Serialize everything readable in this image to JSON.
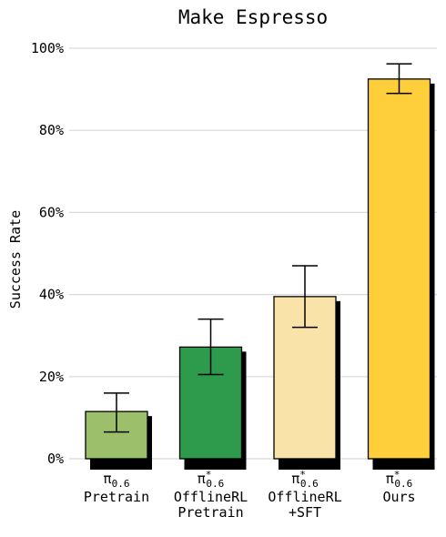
{
  "chart_data": {
    "type": "bar",
    "title": "Make Espresso",
    "ylabel": "Success Rate",
    "xlabel": "",
    "ylim": [
      0,
      100
    ],
    "yticks": [
      "0%",
      "20%",
      "40%",
      "60%",
      "80%",
      "100%"
    ],
    "ytick_values": [
      0,
      20,
      40,
      60,
      80,
      100
    ],
    "grid": true,
    "categories": [
      {
        "lines": [
          {
            "base": "π",
            "sup": "",
            "sub": "0.6"
          },
          {
            "text": "Pretrain"
          }
        ]
      },
      {
        "lines": [
          {
            "base": "π",
            "sup": "*",
            "sub": "0.6"
          },
          {
            "text": "OfflineRL"
          },
          {
            "text": "Pretrain"
          }
        ]
      },
      {
        "lines": [
          {
            "base": "π",
            "sup": "*",
            "sub": "0.6"
          },
          {
            "text": "OfflineRL"
          },
          {
            "text": "+SFT"
          }
        ]
      },
      {
        "lines": [
          {
            "base": "π",
            "sup": "*",
            "sub": "0.6"
          },
          {
            "text": "Ours"
          }
        ]
      }
    ],
    "values": [
      11.5,
      27.2,
      39.5,
      92.5
    ],
    "error_low": [
      6.5,
      20.5,
      32.0,
      89.0
    ],
    "error_high": [
      16.0,
      34.0,
      47.0,
      96.2
    ],
    "colors": [
      "#9bbf6b",
      "#2e9a4b",
      "#fae3a8",
      "#ffcf3b"
    ]
  }
}
